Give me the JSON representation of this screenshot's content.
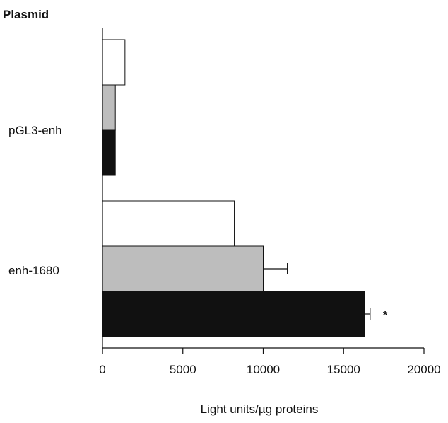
{
  "chart_data": {
    "type": "bar",
    "orientation": "horizontal",
    "title": "Plasmid",
    "xlabel": "Light units/µg proteins",
    "ylabel": "",
    "xlim": [
      0,
      20000
    ],
    "xticks": [
      0,
      5000,
      10000,
      15000,
      20000
    ],
    "categories": [
      "pGL3-enh",
      "enh-1680"
    ],
    "grid": false,
    "series": [
      {
        "fill": "#ffffff",
        "values": [
          1400,
          8200
        ],
        "errors": [
          null,
          null
        ]
      },
      {
        "fill": "#bdbdbd",
        "values": [
          800,
          10000
        ],
        "errors": [
          null,
          1500
        ]
      },
      {
        "fill": "#111111",
        "values": [
          800,
          16300
        ],
        "errors": [
          null,
          350
        ]
      }
    ],
    "annotations": [
      {
        "category": "enh-1680",
        "series_index": 2,
        "text": "*"
      }
    ]
  }
}
